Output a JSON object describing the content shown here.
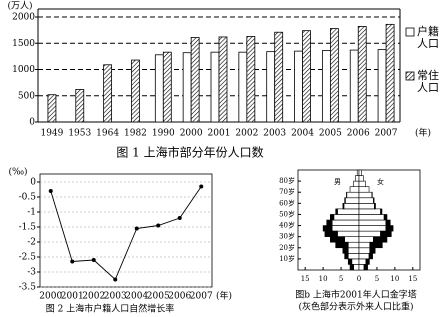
{
  "chart_data": [
    {
      "type": "bar",
      "title": "图 1 上海市部分年份人口数",
      "y_label": "(万人)",
      "x_label": "(年)",
      "categories": [
        "1949",
        "1953",
        "1964",
        "1982",
        "1990",
        "2000",
        "2001",
        "2002",
        "2003",
        "2004",
        "2005",
        "2006",
        "2007"
      ],
      "series": [
        {
          "name": "户籍人口",
          "color": "#ffffff",
          "values": [
            null,
            null,
            null,
            null,
            1280,
            1320,
            1330,
            1330,
            1340,
            1350,
            1360,
            1370,
            1380
          ]
        },
        {
          "name": "常住人口",
          "color": "#000000",
          "pattern": "hatch",
          "values": [
            520,
            620,
            1090,
            1180,
            1330,
            1610,
            1620,
            1630,
            1710,
            1740,
            1780,
            1820,
            1860
          ]
        }
      ],
      "ylim": [
        0,
        2000
      ],
      "yticks": [
        0,
        500,
        1000,
        1500,
        2000
      ],
      "grid": true
    },
    {
      "type": "line",
      "title": "图 2 上海市户籍人口自然增长率",
      "y_label": "(‰)",
      "x_label": "(年)",
      "categories": [
        "2000",
        "2001",
        "2002",
        "2003",
        "2004",
        "2005",
        "2006",
        "2007"
      ],
      "values": [
        -0.3,
        -2.65,
        -2.6,
        -3.25,
        -1.55,
        -1.45,
        -1.2,
        -0.15
      ],
      "color": "#000000",
      "ylim": [
        -3.5,
        0
      ],
      "yticks": [
        0,
        -0.5,
        -1,
        -1.5,
        -2,
        -2.5,
        -3,
        -3.5
      ],
      "grid": true
    },
    {
      "type": "pyramid",
      "title": "图b 上海市2001年人口金字塔",
      "subtitle": "(灰色部分表示外来人口比重)",
      "annotations": [
        "男",
        "女"
      ],
      "age_bins": [
        0,
        5,
        10,
        15,
        20,
        25,
        30,
        35,
        40,
        45,
        50,
        55,
        60,
        65,
        70,
        75,
        80,
        85,
        90
      ],
      "series": [
        {
          "side": "left",
          "color": "#ffffff",
          "values": [
            1.5,
            2,
            3,
            3,
            3,
            4,
            6,
            7.5,
            7.5,
            7,
            6,
            4.2,
            3.8,
            3.4,
            2.5,
            1.5,
            1,
            0.5
          ]
        },
        {
          "side": "left",
          "color": "#000000",
          "values": [
            1,
            1,
            1,
            1.5,
            3.5,
            4,
            3.5,
            2.5,
            1.5,
            1,
            0.5,
            0.3,
            0.2,
            0.1,
            0,
            0,
            0,
            0
          ]
        },
        {
          "side": "right",
          "color": "#ffffff",
          "values": [
            1.4,
            1.9,
            2.8,
            3,
            3,
            4,
            6,
            7.5,
            7.5,
            7,
            6,
            4.3,
            4,
            3.6,
            2.8,
            1.8,
            1.2,
            0.7
          ]
        },
        {
          "side": "right",
          "color": "#000000",
          "values": [
            1,
            1,
            1,
            1.5,
            3.5,
            3.8,
            3,
            2,
            1.2,
            0.8,
            0.4,
            0.3,
            0.2,
            0.1,
            0,
            0,
            0,
            0
          ]
        }
      ],
      "xlim": [
        -17,
        17
      ],
      "xticks": [
        {
          "value": -15,
          "label": "15"
        },
        {
          "value": -10,
          "label": "10"
        },
        {
          "value": -5,
          "label": "5"
        },
        0,
        5,
        10,
        15
      ],
      "ylim": [
        0,
        90
      ],
      "yticks": [
        {
          "value": 10,
          "label": "10岁"
        },
        {
          "value": 20,
          "label": "20岁"
        },
        {
          "value": 30,
          "label": "30岁"
        },
        {
          "value": 40,
          "label": "40岁"
        },
        {
          "value": 50,
          "label": "50岁"
        },
        {
          "value": 60,
          "label": "60岁"
        },
        {
          "value": 70,
          "label": "70岁"
        },
        {
          "value": 80,
          "label": "80岁"
        }
      ]
    }
  ]
}
